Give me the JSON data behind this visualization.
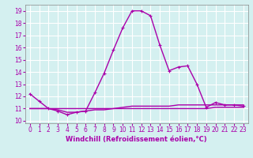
{
  "xlabel": "Windchill (Refroidissement éolien,°C)",
  "bg_color": "#d4f0f0",
  "grid_color": "#ffffff",
  "line_color": "#aa00aa",
  "xlim": [
    -0.5,
    23.5
  ],
  "ylim": [
    9.8,
    19.5
  ],
  "xticks": [
    0,
    1,
    2,
    3,
    4,
    5,
    6,
    7,
    8,
    9,
    10,
    11,
    12,
    13,
    14,
    15,
    16,
    17,
    18,
    19,
    20,
    21,
    22,
    23
  ],
  "yticks": [
    10,
    11,
    12,
    13,
    14,
    15,
    16,
    17,
    18,
    19
  ],
  "series1_x": [
    0,
    1,
    2,
    3,
    4,
    5,
    6,
    7,
    8,
    9,
    10,
    11,
    12,
    13,
    14,
    15,
    16,
    17,
    18,
    19,
    20,
    21,
    22,
    23
  ],
  "series1_y": [
    12.2,
    11.6,
    11.0,
    10.8,
    10.5,
    10.7,
    10.8,
    12.3,
    13.9,
    15.8,
    17.6,
    19.0,
    19.0,
    18.6,
    16.2,
    14.1,
    14.4,
    14.5,
    13.0,
    11.1,
    11.5,
    11.3,
    11.3,
    11.2
  ],
  "series2_x": [
    0,
    1,
    2,
    3,
    4,
    5,
    6,
    7,
    8,
    9,
    10,
    11,
    12,
    13,
    14,
    15,
    16,
    17,
    18,
    19,
    20,
    21,
    22,
    23
  ],
  "series2_y": [
    11.0,
    11.0,
    11.0,
    11.0,
    11.0,
    11.0,
    11.0,
    11.0,
    11.0,
    11.0,
    11.1,
    11.2,
    11.2,
    11.2,
    11.2,
    11.2,
    11.3,
    11.3,
    11.3,
    11.3,
    11.3,
    11.3,
    11.3,
    11.3
  ],
  "series3_x": [
    0,
    1,
    2,
    3,
    4,
    5,
    6,
    7,
    8,
    9,
    10,
    11,
    12,
    13,
    14,
    15,
    16,
    17,
    18,
    19,
    20,
    21,
    22,
    23
  ],
  "series3_y": [
    11.0,
    11.0,
    11.0,
    10.9,
    10.7,
    10.7,
    10.8,
    10.9,
    10.9,
    11.0,
    11.0,
    11.0,
    11.0,
    11.0,
    11.0,
    11.0,
    11.0,
    11.0,
    11.0,
    11.0,
    11.1,
    11.1,
    11.1,
    11.1
  ],
  "tick_fontsize": 5.5,
  "xlabel_fontsize": 6.0
}
